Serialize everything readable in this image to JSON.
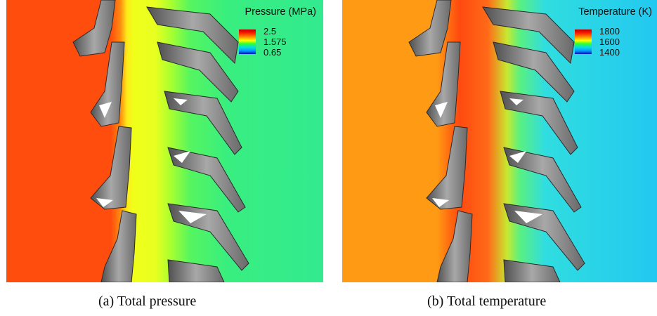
{
  "panels": [
    {
      "legend": {
        "title": "Pressure (MPa)",
        "max": "2.5",
        "mid": "1.575",
        "min": "0.65"
      },
      "colors": {
        "inlet": "#ff4d0d",
        "passage": "#f0ff1a",
        "outlet": "#33ee88"
      },
      "caption": "(a) Total pressure"
    },
    {
      "legend": {
        "title": "Temperature (K)",
        "max": "1800",
        "mid": "1600",
        "min": "1400"
      },
      "colors": {
        "inlet": "#ff9a14",
        "passage": "#ff5a10",
        "outlet": "#22d8ee"
      },
      "caption": "(b) Total temperature"
    }
  ]
}
